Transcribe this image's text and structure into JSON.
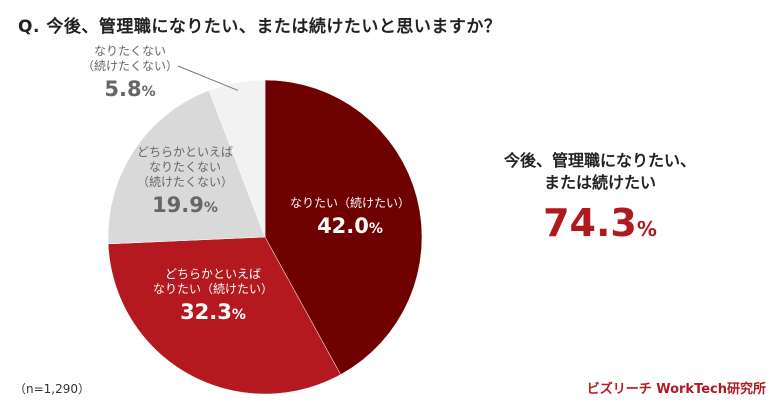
{
  "question": "Q. 今後、管理職になりたい、または続けたいと思いますか？",
  "chart_data": {
    "type": "pie",
    "start_angle_deg": 0,
    "direction": "clockwise",
    "slices": [
      {
        "name_lines": [
          "なりたい（続けたい）"
        ],
        "value": 42.0,
        "pct_label": "42.0",
        "color": "#6f0000",
        "text": "light"
      },
      {
        "name_lines": [
          "どちらかといえば",
          "なりたい（続けたい）"
        ],
        "value": 32.3,
        "pct_label": "32.3",
        "color": "#b3191f",
        "text": "light"
      },
      {
        "name_lines": [
          "どちらかといえば",
          "なりたくない",
          "（続けたくない）"
        ],
        "value": 19.9,
        "pct_label": "19.9",
        "color": "#d9d9d9",
        "text": "dark"
      },
      {
        "name_lines": [
          "なりたくない",
          "（続けたくない）"
        ],
        "value": 5.8,
        "pct_label": "5.8",
        "color": "#f2f2f2",
        "text": "dark"
      }
    ],
    "unit": "%"
  },
  "summary": {
    "line1": "今後、管理職になりたい、",
    "line2": "または続けたい",
    "value": "74.3",
    "unit": "%"
  },
  "footer": {
    "n_label": "（n=1,290）",
    "source": "ビズリーチ WorkTech研究所"
  }
}
